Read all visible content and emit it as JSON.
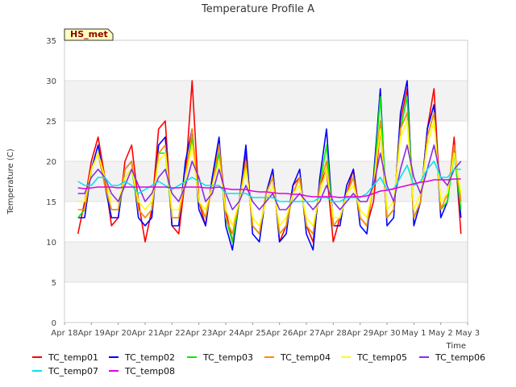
{
  "chart_data": {
    "type": "line",
    "title": "Temperature Profile A",
    "xlabel": "Time",
    "ylabel": "Temperature (C)",
    "badge": "HS_met",
    "ylim": [
      0,
      35
    ],
    "yticks": [
      0,
      5,
      10,
      15,
      20,
      25,
      30,
      35
    ],
    "xlim": [
      "2023-04-18",
      "2023-05-03"
    ],
    "xticks": [
      "Apr 18",
      "Apr 19",
      "Apr 20",
      "Apr 21",
      "Apr 22",
      "Apr 23",
      "Apr 24",
      "Apr 25",
      "Apr 26",
      "Apr 27",
      "Apr 28",
      "Apr 29",
      "Apr 30",
      "May 1",
      "May 2",
      "May 3"
    ],
    "grid": "horizontal bands",
    "legend_position": "bottom",
    "x": [
      "2023-04-18 12:00",
      "2023-04-18 18:00",
      "2023-04-19 00:00",
      "2023-04-19 06:00",
      "2023-04-19 12:00",
      "2023-04-19 18:00",
      "2023-04-20 00:00",
      "2023-04-20 06:00",
      "2023-04-20 12:00",
      "2023-04-20 18:00",
      "2023-04-21 00:00",
      "2023-04-21 06:00",
      "2023-04-21 12:00",
      "2023-04-21 18:00",
      "2023-04-22 00:00",
      "2023-04-22 06:00",
      "2023-04-22 12:00",
      "2023-04-22 18:00",
      "2023-04-23 00:00",
      "2023-04-23 06:00",
      "2023-04-23 12:00",
      "2023-04-23 18:00",
      "2023-04-24 00:00",
      "2023-04-24 06:00",
      "2023-04-24 12:00",
      "2023-04-24 18:00",
      "2023-04-25 00:00",
      "2023-04-25 06:00",
      "2023-04-25 12:00",
      "2023-04-25 18:00",
      "2023-04-26 00:00",
      "2023-04-26 06:00",
      "2023-04-26 12:00",
      "2023-04-26 18:00",
      "2023-04-27 00:00",
      "2023-04-27 06:00",
      "2023-04-27 12:00",
      "2023-04-27 18:00",
      "2023-04-28 00:00",
      "2023-04-28 06:00",
      "2023-04-28 12:00",
      "2023-04-28 18:00",
      "2023-04-29 00:00",
      "2023-04-29 06:00",
      "2023-04-29 12:00",
      "2023-04-29 18:00",
      "2023-04-30 00:00",
      "2023-04-30 06:00",
      "2023-04-30 12:00",
      "2023-04-30 18:00",
      "2023-05-01 00:00",
      "2023-05-01 06:00",
      "2023-05-01 12:00",
      "2023-05-01 18:00",
      "2023-05-02 00:00",
      "2023-05-02 06:00",
      "2023-05-02 12:00",
      "2023-05-02 18:00"
    ],
    "series": [
      {
        "name": "TC_temp01",
        "color": "#ff0000",
        "values": [
          11,
          15,
          20,
          23,
          18,
          12,
          13,
          20,
          22,
          15,
          10,
          14,
          24,
          25,
          12,
          11,
          18,
          30,
          15,
          12,
          18,
          22,
          14,
          10,
          15,
          21,
          12,
          11,
          16,
          19,
          10,
          12,
          17,
          18,
          12,
          10,
          17,
          19,
          10,
          13,
          16,
          19,
          13,
          12,
          15,
          24,
          13,
          14,
          25,
          29,
          13,
          15,
          24,
          29,
          14,
          15,
          23,
          11
        ]
      },
      {
        "name": "TC_temp02",
        "color": "#0000ff",
        "values": [
          13,
          13,
          19,
          22,
          17,
          13,
          13,
          19,
          20,
          13,
          12,
          13,
          22,
          23,
          12,
          12,
          20,
          24,
          14,
          12,
          18,
          23,
          12,
          9,
          15,
          22,
          11,
          10,
          16,
          19,
          10,
          11,
          17,
          19,
          11,
          9,
          18,
          24,
          12,
          12,
          17,
          19,
          12,
          11,
          18,
          29,
          12,
          13,
          26,
          30,
          12,
          15,
          24,
          27,
          13,
          15,
          22,
          13
        ]
      },
      {
        "name": "TC_temp03",
        "color": "#00ee00",
        "values": [
          13,
          14,
          19,
          21,
          17,
          14,
          14,
          18,
          19,
          14,
          13,
          14,
          21,
          21,
          13,
          13,
          18,
          23,
          15,
          13,
          17,
          21,
          13,
          10,
          15,
          20,
          12,
          11,
          16,
          18,
          11,
          12,
          16,
          18,
          12,
          11,
          17,
          22,
          12,
          13,
          16,
          18,
          13,
          12,
          17,
          28,
          13,
          14,
          24,
          28,
          13,
          15,
          23,
          26,
          14,
          15,
          21,
          14
        ]
      },
      {
        "name": "TC_temp04",
        "color": "#ff8c00",
        "values": [
          14,
          14,
          19,
          21,
          17,
          14,
          14,
          19,
          20,
          14,
          13,
          14,
          21,
          22,
          13,
          13,
          18,
          24,
          15,
          13,
          17,
          22,
          13,
          11,
          15,
          20,
          12,
          11,
          16,
          18,
          11,
          12,
          16,
          18,
          12,
          11,
          17,
          20,
          12,
          13,
          16,
          18,
          13,
          12,
          17,
          25,
          13,
          14,
          24,
          26,
          13,
          15,
          23,
          26,
          14,
          16,
          22,
          15
        ]
      },
      {
        "name": "TC_temp05",
        "color": "#ffff00",
        "values": [
          15,
          15,
          19,
          21,
          18,
          15,
          15,
          18,
          19,
          15,
          14,
          15,
          20,
          21,
          14,
          14,
          18,
          22,
          15,
          14,
          17,
          20,
          14,
          12,
          15,
          19,
          13,
          12,
          15,
          17,
          12,
          13,
          16,
          17,
          13,
          12,
          16,
          19,
          13,
          13,
          16,
          17,
          14,
          13,
          17,
          24,
          14,
          15,
          23,
          25,
          14,
          16,
          22,
          25,
          15,
          16,
          21,
          16
        ]
      },
      {
        "name": "TC_temp06",
        "color": "#8a2be2",
        "values": [
          16,
          16,
          18,
          19,
          18,
          16,
          15,
          17,
          19,
          17,
          15,
          16,
          18,
          19,
          16,
          15,
          17,
          20,
          18,
          15,
          16,
          19,
          16,
          14,
          15,
          17,
          15,
          14,
          15,
          16,
          14,
          14,
          15,
          16,
          15,
          14,
          15,
          17,
          15,
          14,
          15,
          16,
          15,
          15,
          17,
          21,
          17,
          15,
          19,
          22,
          18,
          16,
          19,
          22,
          18,
          17,
          19,
          20
        ]
      },
      {
        "name": "TC_temp07",
        "color": "#00e5ee",
        "values": [
          17.5,
          17,
          17,
          18,
          18,
          17,
          17,
          17.5,
          17,
          16,
          16.5,
          17,
          17.5,
          17,
          16.5,
          17,
          17.5,
          18,
          17.5,
          17,
          17,
          17,
          16,
          16,
          16,
          16,
          15.5,
          15.5,
          15.5,
          15.5,
          15,
          15,
          15,
          15,
          15,
          15,
          15.5,
          15.5,
          15,
          15,
          15.5,
          15.5,
          15.5,
          16,
          17,
          18,
          16.5,
          16.5,
          18,
          19.5,
          17,
          17.5,
          19,
          20,
          18,
          18,
          19,
          19
        ]
      },
      {
        "name": "TC_temp08",
        "color": "#e000e0",
        "values": [
          16.7,
          16.6,
          16.7,
          16.8,
          16.8,
          16.8,
          16.7,
          16.8,
          16.8,
          16.8,
          16.8,
          16.8,
          16.8,
          16.8,
          16.7,
          16.7,
          16.8,
          16.8,
          16.8,
          16.7,
          16.7,
          16.8,
          16.6,
          16.5,
          16.5,
          16.5,
          16.3,
          16.2,
          16.2,
          16.1,
          16.0,
          16.0,
          15.9,
          15.9,
          15.7,
          15.6,
          15.6,
          15.6,
          15.6,
          15.5,
          15.6,
          15.6,
          15.6,
          15.7,
          16.0,
          16.3,
          16.4,
          16.6,
          16.8,
          17.0,
          17.2,
          17.4,
          17.5,
          17.7,
          17.7,
          17.7,
          17.8,
          17.8
        ]
      }
    ]
  }
}
